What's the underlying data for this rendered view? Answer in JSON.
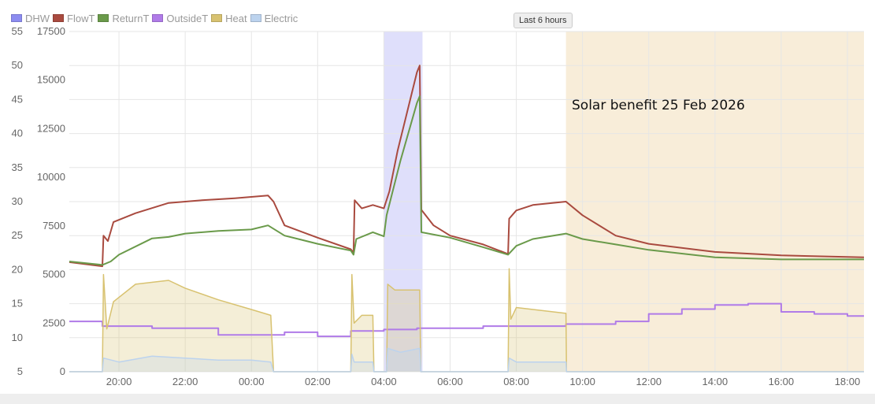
{
  "legend": [
    {
      "name": "DHW",
      "color": "#8c8cf0"
    },
    {
      "name": "FlowT",
      "color": "#a94a3f"
    },
    {
      "name": "ReturnT",
      "color": "#6a9a4a"
    },
    {
      "name": "OutsideT",
      "color": "#b07be8"
    },
    {
      "name": "Heat",
      "color": "#d8c270"
    },
    {
      "name": "Electric",
      "color": "#bcd3ee"
    }
  ],
  "range_button": "Last 6 hours",
  "annotation": "Solar benefit 25 Feb 2026",
  "chart_data": {
    "type": "line",
    "grid": true,
    "legend_placement": "top-left",
    "x_range": [
      "18:30",
      "18:30"
    ],
    "x_ticks": [
      "20:00",
      "22:00",
      "00:00",
      "02:00",
      "04:00",
      "06:00",
      "08:00",
      "10:00",
      "12:00",
      "14:00",
      "16:00",
      "18:00"
    ],
    "y_left": {
      "ylim": [
        5,
        55
      ],
      "ticks": [
        5,
        10,
        15,
        20,
        25,
        30,
        35,
        40,
        45,
        50,
        55
      ]
    },
    "y_right": {
      "ylim": [
        0,
        17500
      ],
      "ticks": [
        0,
        2500,
        5000,
        7500,
        10000,
        12500,
        15000,
        17500
      ]
    },
    "shaded_regions": [
      {
        "series": "DHW",
        "from": "04:00",
        "to": "05:10",
        "color": "#8c8cf0"
      },
      {
        "label": "Solar",
        "from": "09:30",
        "to": "18:30",
        "color": "#f2dfba"
      }
    ],
    "series": [
      {
        "name": "FlowT",
        "axis": "left",
        "color": "#a94a3f",
        "points": [
          [
            "18:30",
            21.1
          ],
          [
            "19:30",
            20.5
          ],
          [
            "19:32",
            25.0
          ],
          [
            "19:40",
            24.2
          ],
          [
            "19:50",
            27.0
          ],
          [
            "20:30",
            28.3
          ],
          [
            "21:30",
            29.8
          ],
          [
            "22:30",
            30.2
          ],
          [
            "23:30",
            30.5
          ],
          [
            "00:30",
            30.9
          ],
          [
            "00:40",
            30.0
          ],
          [
            "01:00",
            26.5
          ],
          [
            "02:00",
            24.7
          ],
          [
            "03:00",
            23.0
          ],
          [
            "03:05",
            22.5
          ],
          [
            "03:07",
            30.2
          ],
          [
            "03:20",
            29.0
          ],
          [
            "03:40",
            29.5
          ],
          [
            "04:00",
            29.0
          ],
          [
            "04:10",
            31.5
          ],
          [
            "04:25",
            37.5
          ],
          [
            "05:00",
            49.0
          ],
          [
            "05:05",
            50.0
          ],
          [
            "05:08",
            28.8
          ],
          [
            "05:30",
            26.5
          ],
          [
            "06:00",
            25.0
          ],
          [
            "07:00",
            23.7
          ],
          [
            "07:45",
            22.3
          ],
          [
            "07:47",
            27.5
          ],
          [
            "08:00",
            28.7
          ],
          [
            "08:30",
            29.5
          ],
          [
            "09:30",
            30.0
          ],
          [
            "10:00",
            28.0
          ],
          [
            "11:00",
            25.0
          ],
          [
            "12:00",
            23.8
          ],
          [
            "14:00",
            22.6
          ],
          [
            "16:00",
            22.1
          ],
          [
            "18:30",
            21.8
          ]
        ]
      },
      {
        "name": "ReturnT",
        "axis": "left",
        "color": "#6a9a4a",
        "points": [
          [
            "18:30",
            21.2
          ],
          [
            "19:30",
            20.7
          ],
          [
            "19:45",
            21.2
          ],
          [
            "20:00",
            22.2
          ],
          [
            "21:00",
            24.6
          ],
          [
            "21:30",
            24.8
          ],
          [
            "22:00",
            25.3
          ],
          [
            "23:00",
            25.7
          ],
          [
            "00:00",
            25.9
          ],
          [
            "00:30",
            26.5
          ],
          [
            "01:00",
            25.0
          ],
          [
            "02:00",
            23.8
          ],
          [
            "03:00",
            22.8
          ],
          [
            "03:05",
            22.2
          ],
          [
            "03:10",
            24.5
          ],
          [
            "03:40",
            25.5
          ],
          [
            "04:00",
            24.9
          ],
          [
            "04:05",
            28.0
          ],
          [
            "04:30",
            36.0
          ],
          [
            "05:00",
            44.5
          ],
          [
            "05:05",
            45.5
          ],
          [
            "05:08",
            25.5
          ],
          [
            "06:00",
            24.7
          ],
          [
            "07:00",
            23.3
          ],
          [
            "07:45",
            22.2
          ],
          [
            "08:00",
            23.5
          ],
          [
            "08:30",
            24.5
          ],
          [
            "09:30",
            25.3
          ],
          [
            "10:00",
            24.5
          ],
          [
            "11:00",
            23.7
          ],
          [
            "12:00",
            22.9
          ],
          [
            "14:00",
            21.8
          ],
          [
            "16:00",
            21.5
          ],
          [
            "18:30",
            21.5
          ]
        ]
      },
      {
        "name": "OutsideT",
        "axis": "left",
        "color": "#b07be8",
        "points": [
          [
            "18:30",
            12.4
          ],
          [
            "19:30",
            12.4
          ],
          [
            "19:30",
            11.7
          ],
          [
            "21:00",
            11.7
          ],
          [
            "21:00",
            11.4
          ],
          [
            "23:00",
            11.4
          ],
          [
            "23:00",
            10.4
          ],
          [
            "01:00",
            10.4
          ],
          [
            "01:00",
            10.8
          ],
          [
            "02:00",
            10.8
          ],
          [
            "02:00",
            10.2
          ],
          [
            "03:00",
            10.2
          ],
          [
            "03:00",
            11.0
          ],
          [
            "04:00",
            11.0
          ],
          [
            "04:00",
            11.2
          ],
          [
            "05:00",
            11.2
          ],
          [
            "05:00",
            11.4
          ],
          [
            "07:00",
            11.4
          ],
          [
            "07:00",
            11.7
          ],
          [
            "09:30",
            11.7
          ],
          [
            "09:30",
            12.0
          ],
          [
            "11:00",
            12.0
          ],
          [
            "11:00",
            12.4
          ],
          [
            "12:00",
            12.4
          ],
          [
            "12:00",
            13.5
          ],
          [
            "13:00",
            13.5
          ],
          [
            "13:00",
            14.2
          ],
          [
            "14:00",
            14.2
          ],
          [
            "14:00",
            14.8
          ],
          [
            "15:00",
            14.8
          ],
          [
            "15:00",
            15.0
          ],
          [
            "16:00",
            15.0
          ],
          [
            "16:00",
            13.8
          ],
          [
            "17:00",
            13.8
          ],
          [
            "17:00",
            13.5
          ],
          [
            "18:00",
            13.5
          ],
          [
            "18:00",
            13.2
          ],
          [
            "18:30",
            13.2
          ]
        ]
      },
      {
        "name": "Heat",
        "axis": "right",
        "color": "#d8c270",
        "points": [
          [
            "18:30",
            0
          ],
          [
            "19:30",
            0
          ],
          [
            "19:32",
            5000
          ],
          [
            "19:38",
            2200
          ],
          [
            "19:50",
            3600
          ],
          [
            "20:30",
            4500
          ],
          [
            "21:30",
            4700
          ],
          [
            "22:00",
            4300
          ],
          [
            "23:00",
            3700
          ],
          [
            "00:00",
            3200
          ],
          [
            "00:35",
            2900
          ],
          [
            "00:40",
            0
          ],
          [
            "03:00",
            0
          ],
          [
            "03:02",
            5000
          ],
          [
            "03:06",
            2500
          ],
          [
            "03:20",
            2900
          ],
          [
            "03:40",
            2900
          ],
          [
            "03:42",
            0
          ],
          [
            "04:05",
            0
          ],
          [
            "04:07",
            4500
          ],
          [
            "04:20",
            4200
          ],
          [
            "05:05",
            4200
          ],
          [
            "05:07",
            0
          ],
          [
            "07:45",
            0
          ],
          [
            "07:47",
            5300
          ],
          [
            "07:50",
            2700
          ],
          [
            "08:00",
            3300
          ],
          [
            "09:30",
            3000
          ],
          [
            "09:31",
            0
          ],
          [
            "18:30",
            0
          ]
        ]
      },
      {
        "name": "Electric",
        "axis": "right",
        "color": "#bcd3ee",
        "points": [
          [
            "18:30",
            0
          ],
          [
            "19:30",
            0
          ],
          [
            "19:32",
            700
          ],
          [
            "20:00",
            500
          ],
          [
            "21:00",
            800
          ],
          [
            "22:00",
            700
          ],
          [
            "23:00",
            600
          ],
          [
            "00:00",
            600
          ],
          [
            "00:35",
            500
          ],
          [
            "00:40",
            0
          ],
          [
            "03:00",
            0
          ],
          [
            "03:02",
            900
          ],
          [
            "03:06",
            500
          ],
          [
            "03:40",
            500
          ],
          [
            "03:42",
            0
          ],
          [
            "04:05",
            0
          ],
          [
            "04:07",
            1200
          ],
          [
            "04:30",
            1000
          ],
          [
            "05:05",
            1200
          ],
          [
            "05:07",
            0
          ],
          [
            "07:45",
            0
          ],
          [
            "07:47",
            700
          ],
          [
            "08:00",
            500
          ],
          [
            "09:30",
            500
          ],
          [
            "09:31",
            0
          ],
          [
            "18:30",
            0
          ]
        ]
      }
    ]
  }
}
